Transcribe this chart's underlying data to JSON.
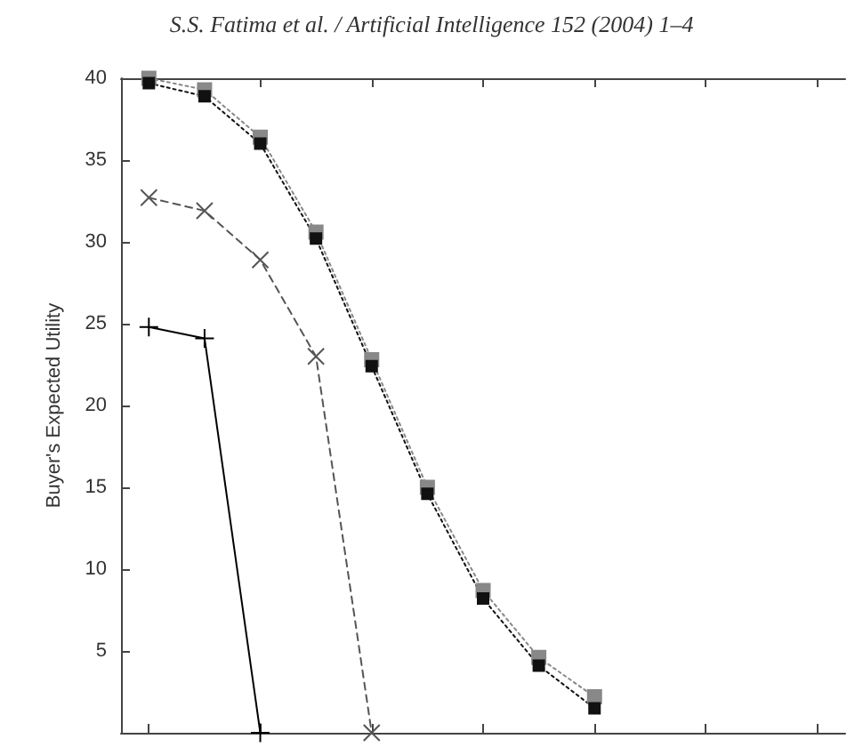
{
  "chart_data": {
    "type": "line",
    "ylabel": "Buyer's Expected Utility",
    "annotations": [
      "S.S. Fatima et al. / Artificial Intelligence 152 (2004) 1–4"
    ],
    "categories": [
      null,
      null,
      null,
      null,
      null,
      null,
      null,
      null,
      null,
      null,
      null,
      null,
      null
    ],
    "ylim": [
      0,
      40
    ],
    "yticks": [
      5,
      10,
      15,
      20,
      25,
      30,
      35,
      40
    ],
    "grid": false,
    "tick_labels": "y",
    "series": [
      {
        "color": "#000000",
        "marker": "plus",
        "line_style": "solid",
        "values": [
          24.8,
          24.1,
          0,
          null,
          null,
          null,
          null,
          null,
          null,
          null,
          null,
          null,
          null
        ]
      },
      {
        "color": "#555555",
        "marker": "cross",
        "line_style": "dashed",
        "values": [
          32.7,
          31.9,
          28.9,
          23.0,
          0,
          null,
          null,
          null,
          null,
          null,
          null,
          null,
          null
        ]
      },
      {
        "color": "#888888",
        "marker": "square",
        "line_style": "dotted",
        "values": [
          40.0,
          39.3,
          36.4,
          30.6,
          22.8,
          15.0,
          8.7,
          4.6,
          2.2,
          null,
          null,
          null,
          null
        ]
      },
      {
        "color": "#111111",
        "marker": "square",
        "line_style": "dotted",
        "values": [
          39.7,
          38.9,
          36.0,
          30.2,
          22.4,
          14.6,
          8.2,
          4.1,
          1.5,
          null,
          null,
          null,
          null
        ]
      }
    ]
  }
}
